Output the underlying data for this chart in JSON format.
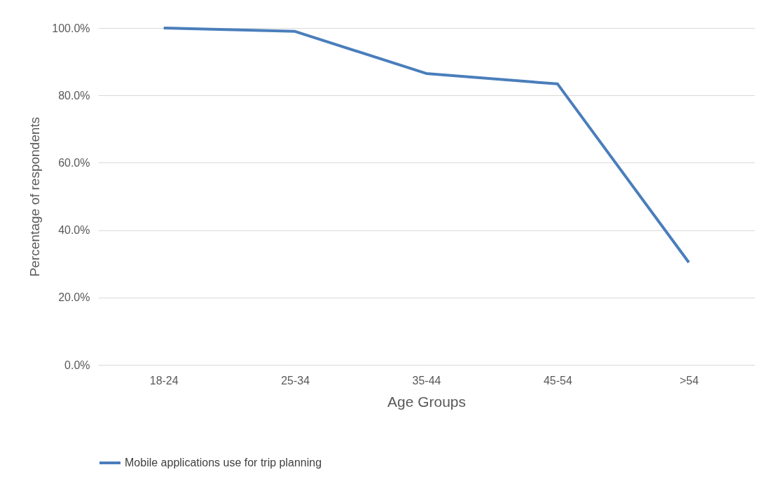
{
  "chart_data": {
    "type": "line",
    "xlabel": "Age Groups",
    "ylabel": "Percentage of respondents",
    "categories": [
      "18-24",
      "25-34",
      "35-44",
      "45-54",
      ">54"
    ],
    "series": [
      {
        "name": "Mobile applications use for trip planning",
        "color": "#4a7ebb",
        "values": [
          100,
          99.0,
          86.5,
          83.4,
          30.4
        ]
      }
    ],
    "ylim": [
      0,
      100
    ],
    "yticks": [
      {
        "value": 0,
        "label": "0.0%"
      },
      {
        "value": 20,
        "label": "20.0%"
      },
      {
        "value": 40,
        "label": "40.0%"
      },
      {
        "value": 60,
        "label": "60.0%"
      },
      {
        "value": 80,
        "label": "80.0%"
      },
      {
        "value": 100,
        "label": "100.0%"
      }
    ],
    "grid": "y",
    "legend": "bottom",
    "marker": "none",
    "line_style": "solid"
  }
}
